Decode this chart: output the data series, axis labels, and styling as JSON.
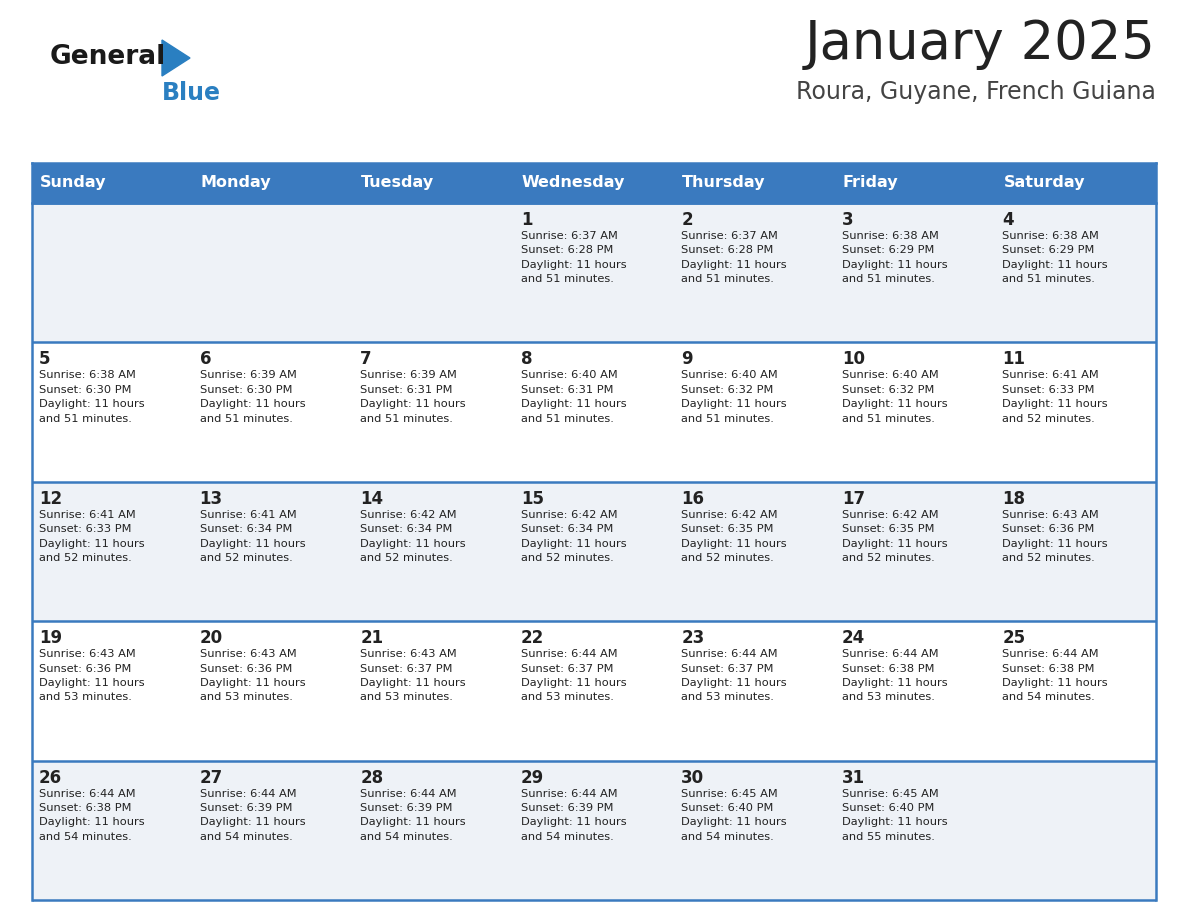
{
  "title": "January 2025",
  "subtitle": "Roura, Guyane, French Guiana",
  "header_bg": "#3a7abf",
  "header_text": "#ffffff",
  "row_bg_odd": "#eef2f7",
  "row_bg_even": "#ffffff",
  "border_color": "#3a7abf",
  "title_color": "#222222",
  "subtitle_color": "#444444",
  "text_color": "#222222",
  "days_of_week": [
    "Sunday",
    "Monday",
    "Tuesday",
    "Wednesday",
    "Thursday",
    "Friday",
    "Saturday"
  ],
  "calendar": [
    [
      {
        "day": "",
        "info": ""
      },
      {
        "day": "",
        "info": ""
      },
      {
        "day": "",
        "info": ""
      },
      {
        "day": "1",
        "info": "Sunrise: 6:37 AM\nSunset: 6:28 PM\nDaylight: 11 hours\nand 51 minutes."
      },
      {
        "day": "2",
        "info": "Sunrise: 6:37 AM\nSunset: 6:28 PM\nDaylight: 11 hours\nand 51 minutes."
      },
      {
        "day": "3",
        "info": "Sunrise: 6:38 AM\nSunset: 6:29 PM\nDaylight: 11 hours\nand 51 minutes."
      },
      {
        "day": "4",
        "info": "Sunrise: 6:38 AM\nSunset: 6:29 PM\nDaylight: 11 hours\nand 51 minutes."
      }
    ],
    [
      {
        "day": "5",
        "info": "Sunrise: 6:38 AM\nSunset: 6:30 PM\nDaylight: 11 hours\nand 51 minutes."
      },
      {
        "day": "6",
        "info": "Sunrise: 6:39 AM\nSunset: 6:30 PM\nDaylight: 11 hours\nand 51 minutes."
      },
      {
        "day": "7",
        "info": "Sunrise: 6:39 AM\nSunset: 6:31 PM\nDaylight: 11 hours\nand 51 minutes."
      },
      {
        "day": "8",
        "info": "Sunrise: 6:40 AM\nSunset: 6:31 PM\nDaylight: 11 hours\nand 51 minutes."
      },
      {
        "day": "9",
        "info": "Sunrise: 6:40 AM\nSunset: 6:32 PM\nDaylight: 11 hours\nand 51 minutes."
      },
      {
        "day": "10",
        "info": "Sunrise: 6:40 AM\nSunset: 6:32 PM\nDaylight: 11 hours\nand 51 minutes."
      },
      {
        "day": "11",
        "info": "Sunrise: 6:41 AM\nSunset: 6:33 PM\nDaylight: 11 hours\nand 52 minutes."
      }
    ],
    [
      {
        "day": "12",
        "info": "Sunrise: 6:41 AM\nSunset: 6:33 PM\nDaylight: 11 hours\nand 52 minutes."
      },
      {
        "day": "13",
        "info": "Sunrise: 6:41 AM\nSunset: 6:34 PM\nDaylight: 11 hours\nand 52 minutes."
      },
      {
        "day": "14",
        "info": "Sunrise: 6:42 AM\nSunset: 6:34 PM\nDaylight: 11 hours\nand 52 minutes."
      },
      {
        "day": "15",
        "info": "Sunrise: 6:42 AM\nSunset: 6:34 PM\nDaylight: 11 hours\nand 52 minutes."
      },
      {
        "day": "16",
        "info": "Sunrise: 6:42 AM\nSunset: 6:35 PM\nDaylight: 11 hours\nand 52 minutes."
      },
      {
        "day": "17",
        "info": "Sunrise: 6:42 AM\nSunset: 6:35 PM\nDaylight: 11 hours\nand 52 minutes."
      },
      {
        "day": "18",
        "info": "Sunrise: 6:43 AM\nSunset: 6:36 PM\nDaylight: 11 hours\nand 52 minutes."
      }
    ],
    [
      {
        "day": "19",
        "info": "Sunrise: 6:43 AM\nSunset: 6:36 PM\nDaylight: 11 hours\nand 53 minutes."
      },
      {
        "day": "20",
        "info": "Sunrise: 6:43 AM\nSunset: 6:36 PM\nDaylight: 11 hours\nand 53 minutes."
      },
      {
        "day": "21",
        "info": "Sunrise: 6:43 AM\nSunset: 6:37 PM\nDaylight: 11 hours\nand 53 minutes."
      },
      {
        "day": "22",
        "info": "Sunrise: 6:44 AM\nSunset: 6:37 PM\nDaylight: 11 hours\nand 53 minutes."
      },
      {
        "day": "23",
        "info": "Sunrise: 6:44 AM\nSunset: 6:37 PM\nDaylight: 11 hours\nand 53 minutes."
      },
      {
        "day": "24",
        "info": "Sunrise: 6:44 AM\nSunset: 6:38 PM\nDaylight: 11 hours\nand 53 minutes."
      },
      {
        "day": "25",
        "info": "Sunrise: 6:44 AM\nSunset: 6:38 PM\nDaylight: 11 hours\nand 54 minutes."
      }
    ],
    [
      {
        "day": "26",
        "info": "Sunrise: 6:44 AM\nSunset: 6:38 PM\nDaylight: 11 hours\nand 54 minutes."
      },
      {
        "day": "27",
        "info": "Sunrise: 6:44 AM\nSunset: 6:39 PM\nDaylight: 11 hours\nand 54 minutes."
      },
      {
        "day": "28",
        "info": "Sunrise: 6:44 AM\nSunset: 6:39 PM\nDaylight: 11 hours\nand 54 minutes."
      },
      {
        "day": "29",
        "info": "Sunrise: 6:44 AM\nSunset: 6:39 PM\nDaylight: 11 hours\nand 54 minutes."
      },
      {
        "day": "30",
        "info": "Sunrise: 6:45 AM\nSunset: 6:40 PM\nDaylight: 11 hours\nand 54 minutes."
      },
      {
        "day": "31",
        "info": "Sunrise: 6:45 AM\nSunset: 6:40 PM\nDaylight: 11 hours\nand 55 minutes."
      },
      {
        "day": "",
        "info": ""
      }
    ]
  ],
  "logo_color_general": "#1a1a1a",
  "logo_color_blue": "#2a7fc1",
  "logo_triangle_color": "#2a7fc1"
}
